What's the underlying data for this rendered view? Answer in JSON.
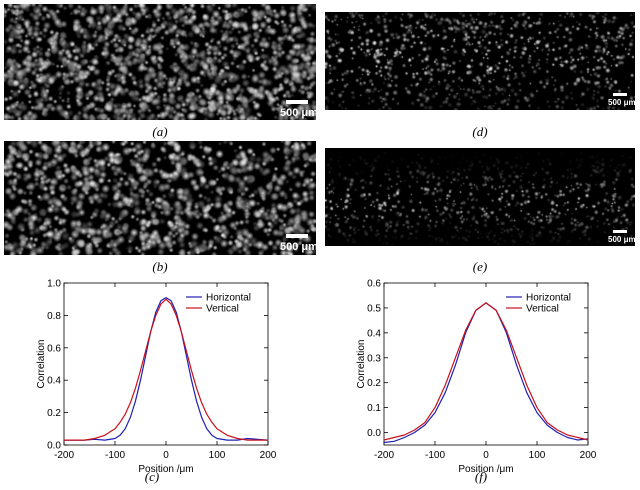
{
  "panels": {
    "a": {
      "caption": "(a)",
      "scale_label": "500 μm"
    },
    "b": {
      "caption": "(b)",
      "scale_label": "500 μm"
    },
    "d": {
      "caption": "(d)",
      "scale_label": "500 μm"
    },
    "e": {
      "caption": "(e)",
      "scale_label": "500 μm"
    },
    "c": {
      "caption": "(c)"
    },
    "f": {
      "caption": "(f)"
    }
  },
  "colors": {
    "horizontal": "#1f1fb4",
    "vertical": "#c8101a"
  },
  "chart_data": [
    {
      "id": "c",
      "type": "line",
      "xlabel": "Position /μm",
      "ylabel": "Correlation",
      "xlim": [
        -200,
        200
      ],
      "ylim": [
        0,
        1.0
      ],
      "xticks": [
        -200,
        -100,
        0,
        100,
        200
      ],
      "yticks": [
        0.0,
        0.2,
        0.4,
        0.6,
        0.8,
        1.0
      ],
      "ytick_labels": [
        "0.0",
        "0.2",
        "0.4",
        "0.6",
        "0.8",
        "1.0"
      ],
      "legend_position": "top-right",
      "series": [
        {
          "name": "Horizontal",
          "color": "#1f1fb4",
          "x": [
            -200,
            -180,
            -160,
            -140,
            -120,
            -100,
            -90,
            -80,
            -70,
            -60,
            -50,
            -40,
            -30,
            -20,
            -10,
            0,
            10,
            20,
            30,
            40,
            50,
            60,
            70,
            80,
            90,
            100,
            120,
            140,
            160,
            180,
            200
          ],
          "y": [
            0.03,
            0.03,
            0.03,
            0.035,
            0.03,
            0.04,
            0.06,
            0.1,
            0.17,
            0.27,
            0.4,
            0.55,
            0.7,
            0.82,
            0.89,
            0.91,
            0.89,
            0.82,
            0.7,
            0.55,
            0.4,
            0.27,
            0.17,
            0.1,
            0.06,
            0.04,
            0.03,
            0.03,
            0.04,
            0.035,
            0.03
          ]
        },
        {
          "name": "Vertical",
          "color": "#c8101a",
          "x": [
            -200,
            -180,
            -160,
            -140,
            -120,
            -100,
            -90,
            -80,
            -70,
            -60,
            -50,
            -40,
            -30,
            -20,
            -10,
            0,
            10,
            20,
            30,
            40,
            50,
            60,
            70,
            80,
            90,
            100,
            120,
            140,
            160,
            180,
            200
          ],
          "y": [
            0.03,
            0.03,
            0.03,
            0.04,
            0.06,
            0.1,
            0.14,
            0.19,
            0.26,
            0.35,
            0.46,
            0.58,
            0.7,
            0.8,
            0.87,
            0.9,
            0.87,
            0.8,
            0.7,
            0.58,
            0.46,
            0.35,
            0.26,
            0.19,
            0.14,
            0.1,
            0.06,
            0.04,
            0.03,
            0.03,
            0.03
          ]
        }
      ]
    },
    {
      "id": "f",
      "type": "line",
      "xlabel": "Position /μm",
      "ylabel": "Correlation",
      "xlim": [
        -200,
        200
      ],
      "ylim": [
        -0.05,
        0.6
      ],
      "xticks": [
        -200,
        -100,
        0,
        100,
        200
      ],
      "yticks": [
        0.0,
        0.1,
        0.2,
        0.3,
        0.4,
        0.5,
        0.6
      ],
      "ytick_labels": [
        "0.0",
        "0.1",
        "0.2",
        "0.3",
        "0.4",
        "0.5",
        "0.6"
      ],
      "legend_position": "top-right",
      "series": [
        {
          "name": "Horizontal",
          "color": "#1f1fb4",
          "x": [
            -200,
            -180,
            -160,
            -140,
            -120,
            -100,
            -80,
            -60,
            -40,
            -20,
            0,
            20,
            40,
            60,
            80,
            100,
            120,
            140,
            160,
            180,
            200
          ],
          "y": [
            -0.04,
            -0.035,
            -0.02,
            0.0,
            0.03,
            0.08,
            0.16,
            0.27,
            0.4,
            0.49,
            0.52,
            0.49,
            0.4,
            0.27,
            0.16,
            0.08,
            0.03,
            0.0,
            -0.02,
            -0.03,
            -0.025
          ]
        },
        {
          "name": "Vertical",
          "color": "#c8101a",
          "x": [
            -200,
            -180,
            -160,
            -140,
            -120,
            -100,
            -80,
            -60,
            -40,
            -20,
            0,
            20,
            40,
            60,
            80,
            100,
            120,
            140,
            160,
            180,
            200
          ],
          "y": [
            -0.03,
            -0.02,
            -0.01,
            0.01,
            0.04,
            0.1,
            0.19,
            0.3,
            0.41,
            0.49,
            0.52,
            0.49,
            0.41,
            0.3,
            0.19,
            0.1,
            0.04,
            0.01,
            -0.01,
            -0.02,
            -0.03
          ]
        }
      ]
    }
  ]
}
